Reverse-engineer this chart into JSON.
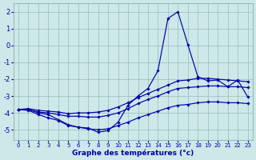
{
  "title": "Graphe des températures (°c)",
  "hours": [
    0,
    1,
    2,
    3,
    4,
    5,
    6,
    7,
    8,
    9,
    10,
    11,
    12,
    13,
    14,
    15,
    16,
    17,
    18,
    19,
    20,
    21,
    22,
    23
  ],
  "line_spike": [
    -3.8,
    -3.8,
    -4.0,
    -4.1,
    -4.4,
    -4.7,
    -4.85,
    -4.9,
    -5.15,
    -5.05,
    -4.55,
    -3.55,
    -3.0,
    -2.55,
    -1.5,
    1.6,
    2.0,
    0.05,
    -1.85,
    -2.1,
    -2.05,
    -2.45,
    -2.05,
    -3.05
  ],
  "line_top": [
    -3.8,
    -3.75,
    -3.85,
    -3.9,
    -3.95,
    -4.05,
    -4.0,
    -4.0,
    -3.95,
    -3.85,
    -3.65,
    -3.4,
    -3.1,
    -2.85,
    -2.6,
    -2.35,
    -2.1,
    -2.05,
    -1.95,
    -1.95,
    -2.0,
    -2.05,
    -2.1,
    -2.15
  ],
  "line_mid": [
    -3.8,
    -3.8,
    -3.95,
    -4.0,
    -4.1,
    -4.2,
    -4.2,
    -4.25,
    -4.25,
    -4.15,
    -4.0,
    -3.75,
    -3.45,
    -3.2,
    -3.0,
    -2.75,
    -2.55,
    -2.5,
    -2.45,
    -2.4,
    -2.4,
    -2.45,
    -2.45,
    -2.5
  ],
  "line_bot": [
    -3.8,
    -3.85,
    -4.1,
    -4.3,
    -4.45,
    -4.75,
    -4.85,
    -4.95,
    -5.0,
    -4.95,
    -4.75,
    -4.55,
    -4.3,
    -4.1,
    -3.9,
    -3.7,
    -3.55,
    -3.5,
    -3.4,
    -3.35,
    -3.35,
    -3.4,
    -3.4,
    -3.45
  ],
  "bg_color": "#cce8e8",
  "grid_color": "#99bbbb",
  "line_color": "#0000aa",
  "marker": "D",
  "markersize": 1.8,
  "linewidth": 0.85,
  "ylim": [
    -5.6,
    2.5
  ],
  "yticks": [
    -5,
    -4,
    -3,
    -2,
    -1,
    0,
    1,
    2
  ],
  "xlim": [
    -0.5,
    23.5
  ]
}
